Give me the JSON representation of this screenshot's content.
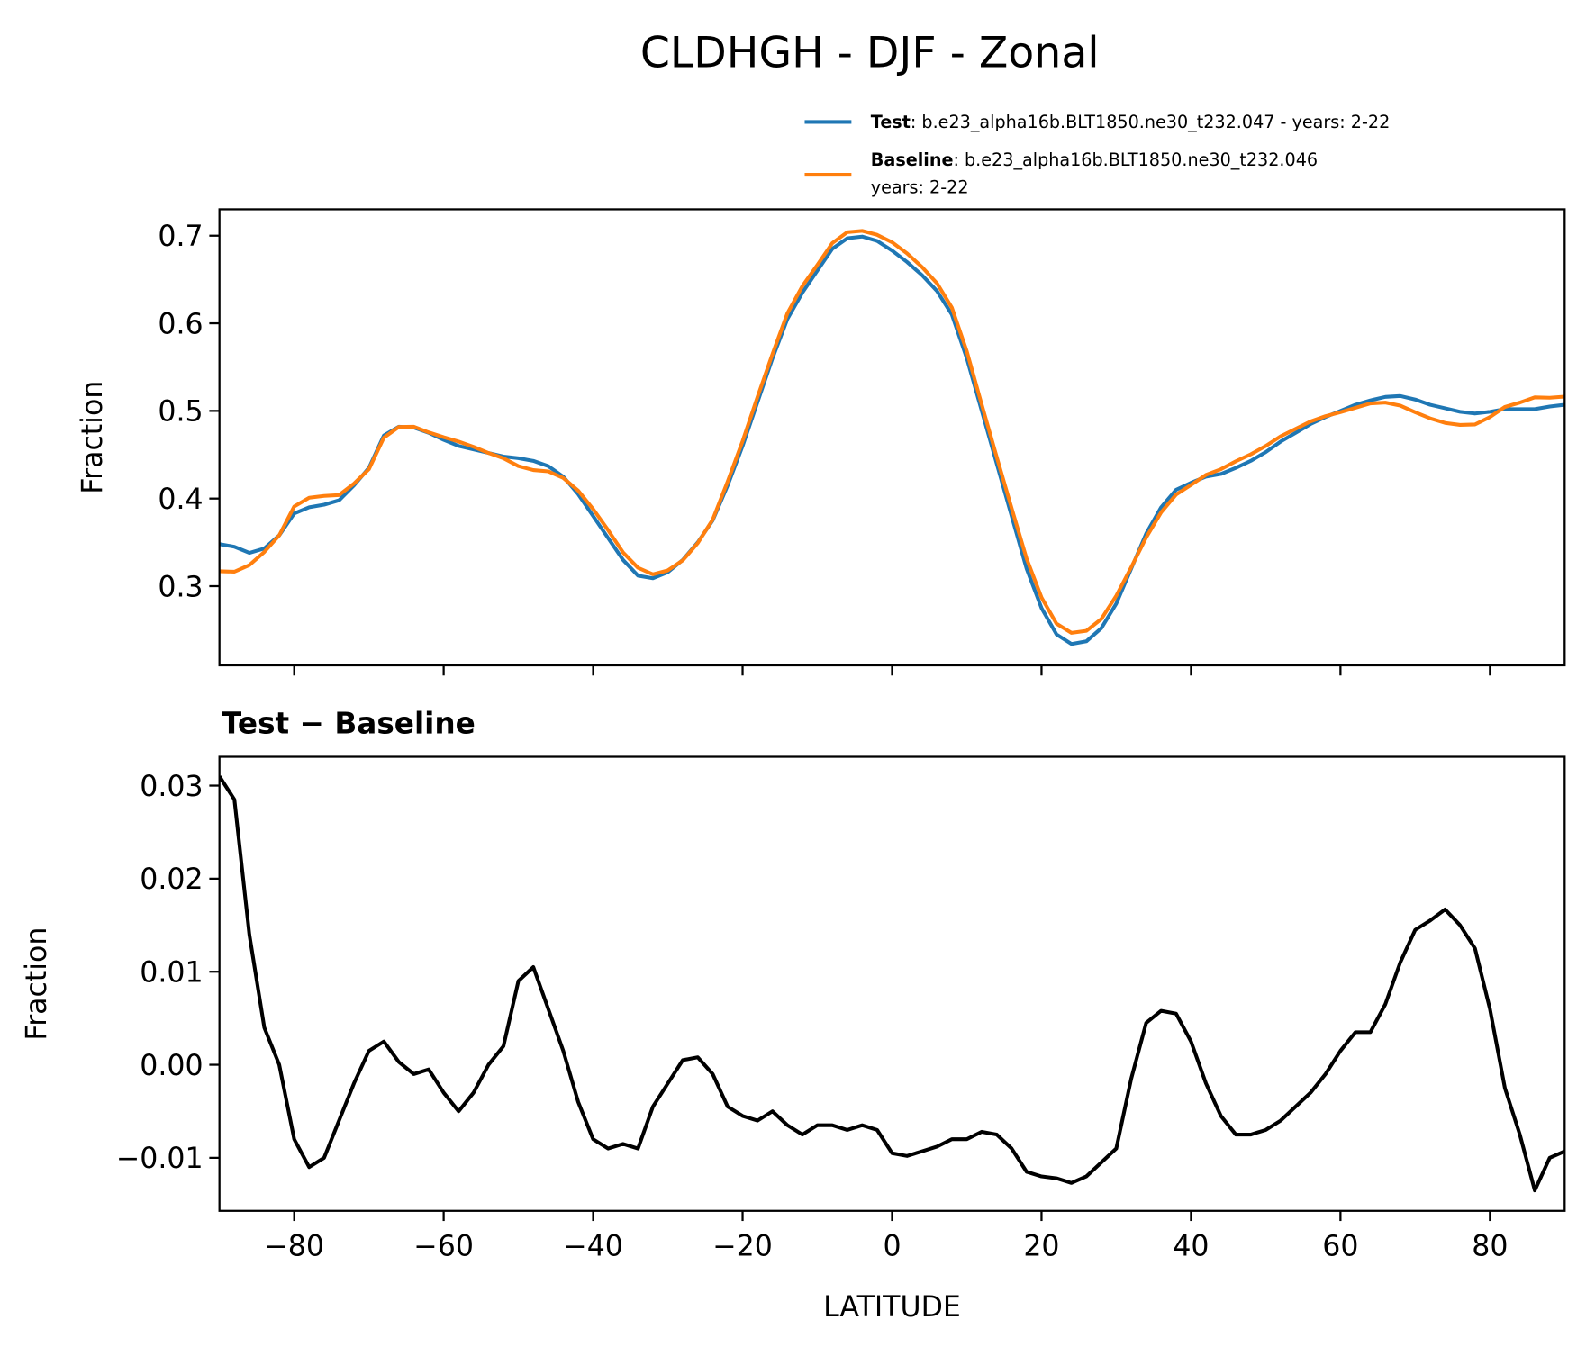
{
  "chart_data": [
    {
      "type": "line",
      "title": "CLDHGH - DJF - Zonal",
      "ylabel": "Fraction",
      "x": [
        -90,
        -88,
        -86,
        -84,
        -82,
        -80,
        -78,
        -76,
        -74,
        -72,
        -70,
        -68,
        -66,
        -64,
        -62,
        -60,
        -58,
        -56,
        -54,
        -52,
        -50,
        -48,
        -46,
        -44,
        -42,
        -40,
        -38,
        -36,
        -34,
        -32,
        -30,
        -28,
        -26,
        -24,
        -22,
        -20,
        -18,
        -16,
        -14,
        -12,
        -10,
        -8,
        -6,
        -4,
        -2,
        0,
        2,
        4,
        6,
        8,
        10,
        12,
        14,
        16,
        18,
        20,
        22,
        24,
        26,
        28,
        30,
        32,
        34,
        36,
        38,
        40,
        42,
        44,
        46,
        48,
        50,
        52,
        54,
        56,
        58,
        60,
        62,
        64,
        66,
        68,
        70,
        72,
        74,
        76,
        78,
        80,
        82,
        84,
        86,
        88,
        90
      ],
      "series": [
        {
          "name": "Test",
          "description": [
            ": b.e23_alpha16b.BLT1850.ne30_t232.047 - years: 2-22"
          ],
          "color": "#1f77b4",
          "values": [
            0.348,
            0.345,
            0.338,
            0.343,
            0.358,
            0.383,
            0.39,
            0.393,
            0.398,
            0.415,
            0.435,
            0.472,
            0.482,
            0.481,
            0.475,
            0.467,
            0.46,
            0.456,
            0.452,
            0.448,
            0.446,
            0.443,
            0.437,
            0.425,
            0.405,
            0.38,
            0.355,
            0.33,
            0.312,
            0.309,
            0.316,
            0.33,
            0.35,
            0.375,
            0.415,
            0.46,
            0.51,
            0.56,
            0.605,
            0.635,
            0.66,
            0.685,
            0.697,
            0.699,
            0.694,
            0.683,
            0.67,
            0.655,
            0.637,
            0.61,
            0.56,
            0.5,
            0.44,
            0.38,
            0.32,
            0.275,
            0.245,
            0.234,
            0.237,
            0.252,
            0.28,
            0.32,
            0.36,
            0.39,
            0.41,
            0.418,
            0.425,
            0.428,
            0.435,
            0.443,
            0.453,
            0.465,
            0.475,
            0.485,
            0.493,
            0.5,
            0.507,
            0.512,
            0.516,
            0.517,
            0.513,
            0.507,
            0.503,
            0.499,
            0.497,
            0.499,
            0.502,
            0.502,
            0.502,
            0.505,
            0.507
          ]
        },
        {
          "name": "Baseline",
          "description": [
            ": b.e23_alpha16b.BLT1850.ne30_t232.046",
            "years: 2-22"
          ],
          "color": "#ff7f0e",
          "values": [
            0.317,
            0.3165,
            0.324,
            0.339,
            0.358,
            0.391,
            0.401,
            0.403,
            0.404,
            0.417,
            0.4335,
            0.4695,
            0.4817,
            0.482,
            0.4755,
            0.47,
            0.465,
            0.459,
            0.452,
            0.446,
            0.437,
            0.4325,
            0.431,
            0.4235,
            0.409,
            0.388,
            0.364,
            0.3385,
            0.321,
            0.3135,
            0.318,
            0.3295,
            0.3492,
            0.376,
            0.4195,
            0.4655,
            0.516,
            0.565,
            0.6115,
            0.6425,
            0.6665,
            0.6915,
            0.704,
            0.7055,
            0.701,
            0.6925,
            0.6798,
            0.6643,
            0.6458,
            0.618,
            0.568,
            0.5072,
            0.4475,
            0.389,
            0.3315,
            0.287,
            0.2572,
            0.2467,
            0.249,
            0.2625,
            0.289,
            0.3215,
            0.3555,
            0.3842,
            0.4045,
            0.4155,
            0.427,
            0.4335,
            0.4425,
            0.4505,
            0.46,
            0.471,
            0.4795,
            0.488,
            0.494,
            0.4985,
            0.5035,
            0.5085,
            0.5095,
            0.506,
            0.4985,
            0.4915,
            0.4863,
            0.484,
            0.4845,
            0.493,
            0.5045,
            0.5095,
            0.5155,
            0.515,
            0.5163
          ]
        }
      ],
      "xlim": [
        -90,
        90
      ],
      "xticks": [
        -80,
        -60,
        -40,
        -20,
        0,
        20,
        40,
        60,
        80
      ],
      "ylim": [
        0.2096,
        0.7301
      ],
      "yticks": [
        0.3,
        0.4,
        0.5,
        0.6,
        0.7
      ]
    },
    {
      "type": "line",
      "title": "Test − Baseline",
      "ylabel": "Fraction",
      "xlabel": "LATITUDE",
      "x": [
        -90,
        -88,
        -86,
        -84,
        -82,
        -80,
        -78,
        -76,
        -74,
        -72,
        -70,
        -68,
        -66,
        -64,
        -62,
        -60,
        -58,
        -56,
        -54,
        -52,
        -50,
        -48,
        -46,
        -44,
        -42,
        -40,
        -38,
        -36,
        -34,
        -32,
        -30,
        -28,
        -26,
        -24,
        -22,
        -20,
        -18,
        -16,
        -14,
        -12,
        -10,
        -8,
        -6,
        -4,
        -2,
        0,
        2,
        4,
        6,
        8,
        10,
        12,
        14,
        16,
        18,
        20,
        22,
        24,
        26,
        28,
        30,
        32,
        34,
        36,
        38,
        40,
        42,
        44,
        46,
        48,
        50,
        52,
        54,
        56,
        58,
        60,
        62,
        64,
        66,
        68,
        70,
        72,
        74,
        76,
        78,
        80,
        82,
        84,
        86,
        88,
        90
      ],
      "series": [
        {
          "color": "#000000",
          "values": [
            0.031,
            0.0285,
            0.014,
            0.004,
            0.0,
            -0.008,
            -0.011,
            -0.01,
            -0.006,
            -0.002,
            0.0015,
            0.0025,
            0.0003,
            -0.001,
            -0.0005,
            -0.003,
            -0.005,
            -0.003,
            0.0,
            0.002,
            0.009,
            0.0105,
            0.006,
            0.0015,
            -0.004,
            -0.008,
            -0.009,
            -0.0085,
            -0.009,
            -0.0045,
            -0.002,
            0.0005,
            0.0008,
            -0.001,
            -0.0045,
            -0.0055,
            -0.006,
            -0.005,
            -0.0065,
            -0.0075,
            -0.0065,
            -0.0065,
            -0.007,
            -0.0065,
            -0.007,
            -0.0095,
            -0.0098,
            -0.0093,
            -0.0088,
            -0.008,
            -0.008,
            -0.0072,
            -0.0075,
            -0.009,
            -0.0115,
            -0.012,
            -0.0122,
            -0.0127,
            -0.012,
            -0.0105,
            -0.009,
            -0.0015,
            0.0045,
            0.0058,
            0.0055,
            0.0025,
            -0.002,
            -0.0055,
            -0.0075,
            -0.0075,
            -0.007,
            -0.006,
            -0.0045,
            -0.003,
            -0.001,
            0.0015,
            0.0035,
            0.0035,
            0.0065,
            0.011,
            0.0145,
            0.0155,
            0.0167,
            0.015,
            0.0125,
            0.006,
            -0.0025,
            -0.0075,
            -0.0135,
            -0.01,
            -0.0093
          ]
        }
      ],
      "xlim": [
        -90,
        90
      ],
      "xticks": [
        {
          "value": -80,
          "label": "−80"
        },
        {
          "value": -60,
          "label": "−60"
        },
        {
          "value": -40,
          "label": "−40"
        },
        {
          "value": -20,
          "label": "−20"
        },
        0,
        20,
        40,
        60,
        80
      ],
      "ylim": [
        -0.0157,
        0.0331
      ],
      "yticks": [
        {
          "value": -0.01,
          "label": "−0.01"
        },
        {
          "value": 0,
          "label": "0.00"
        },
        0.01,
        0.02,
        0.03
      ]
    }
  ]
}
